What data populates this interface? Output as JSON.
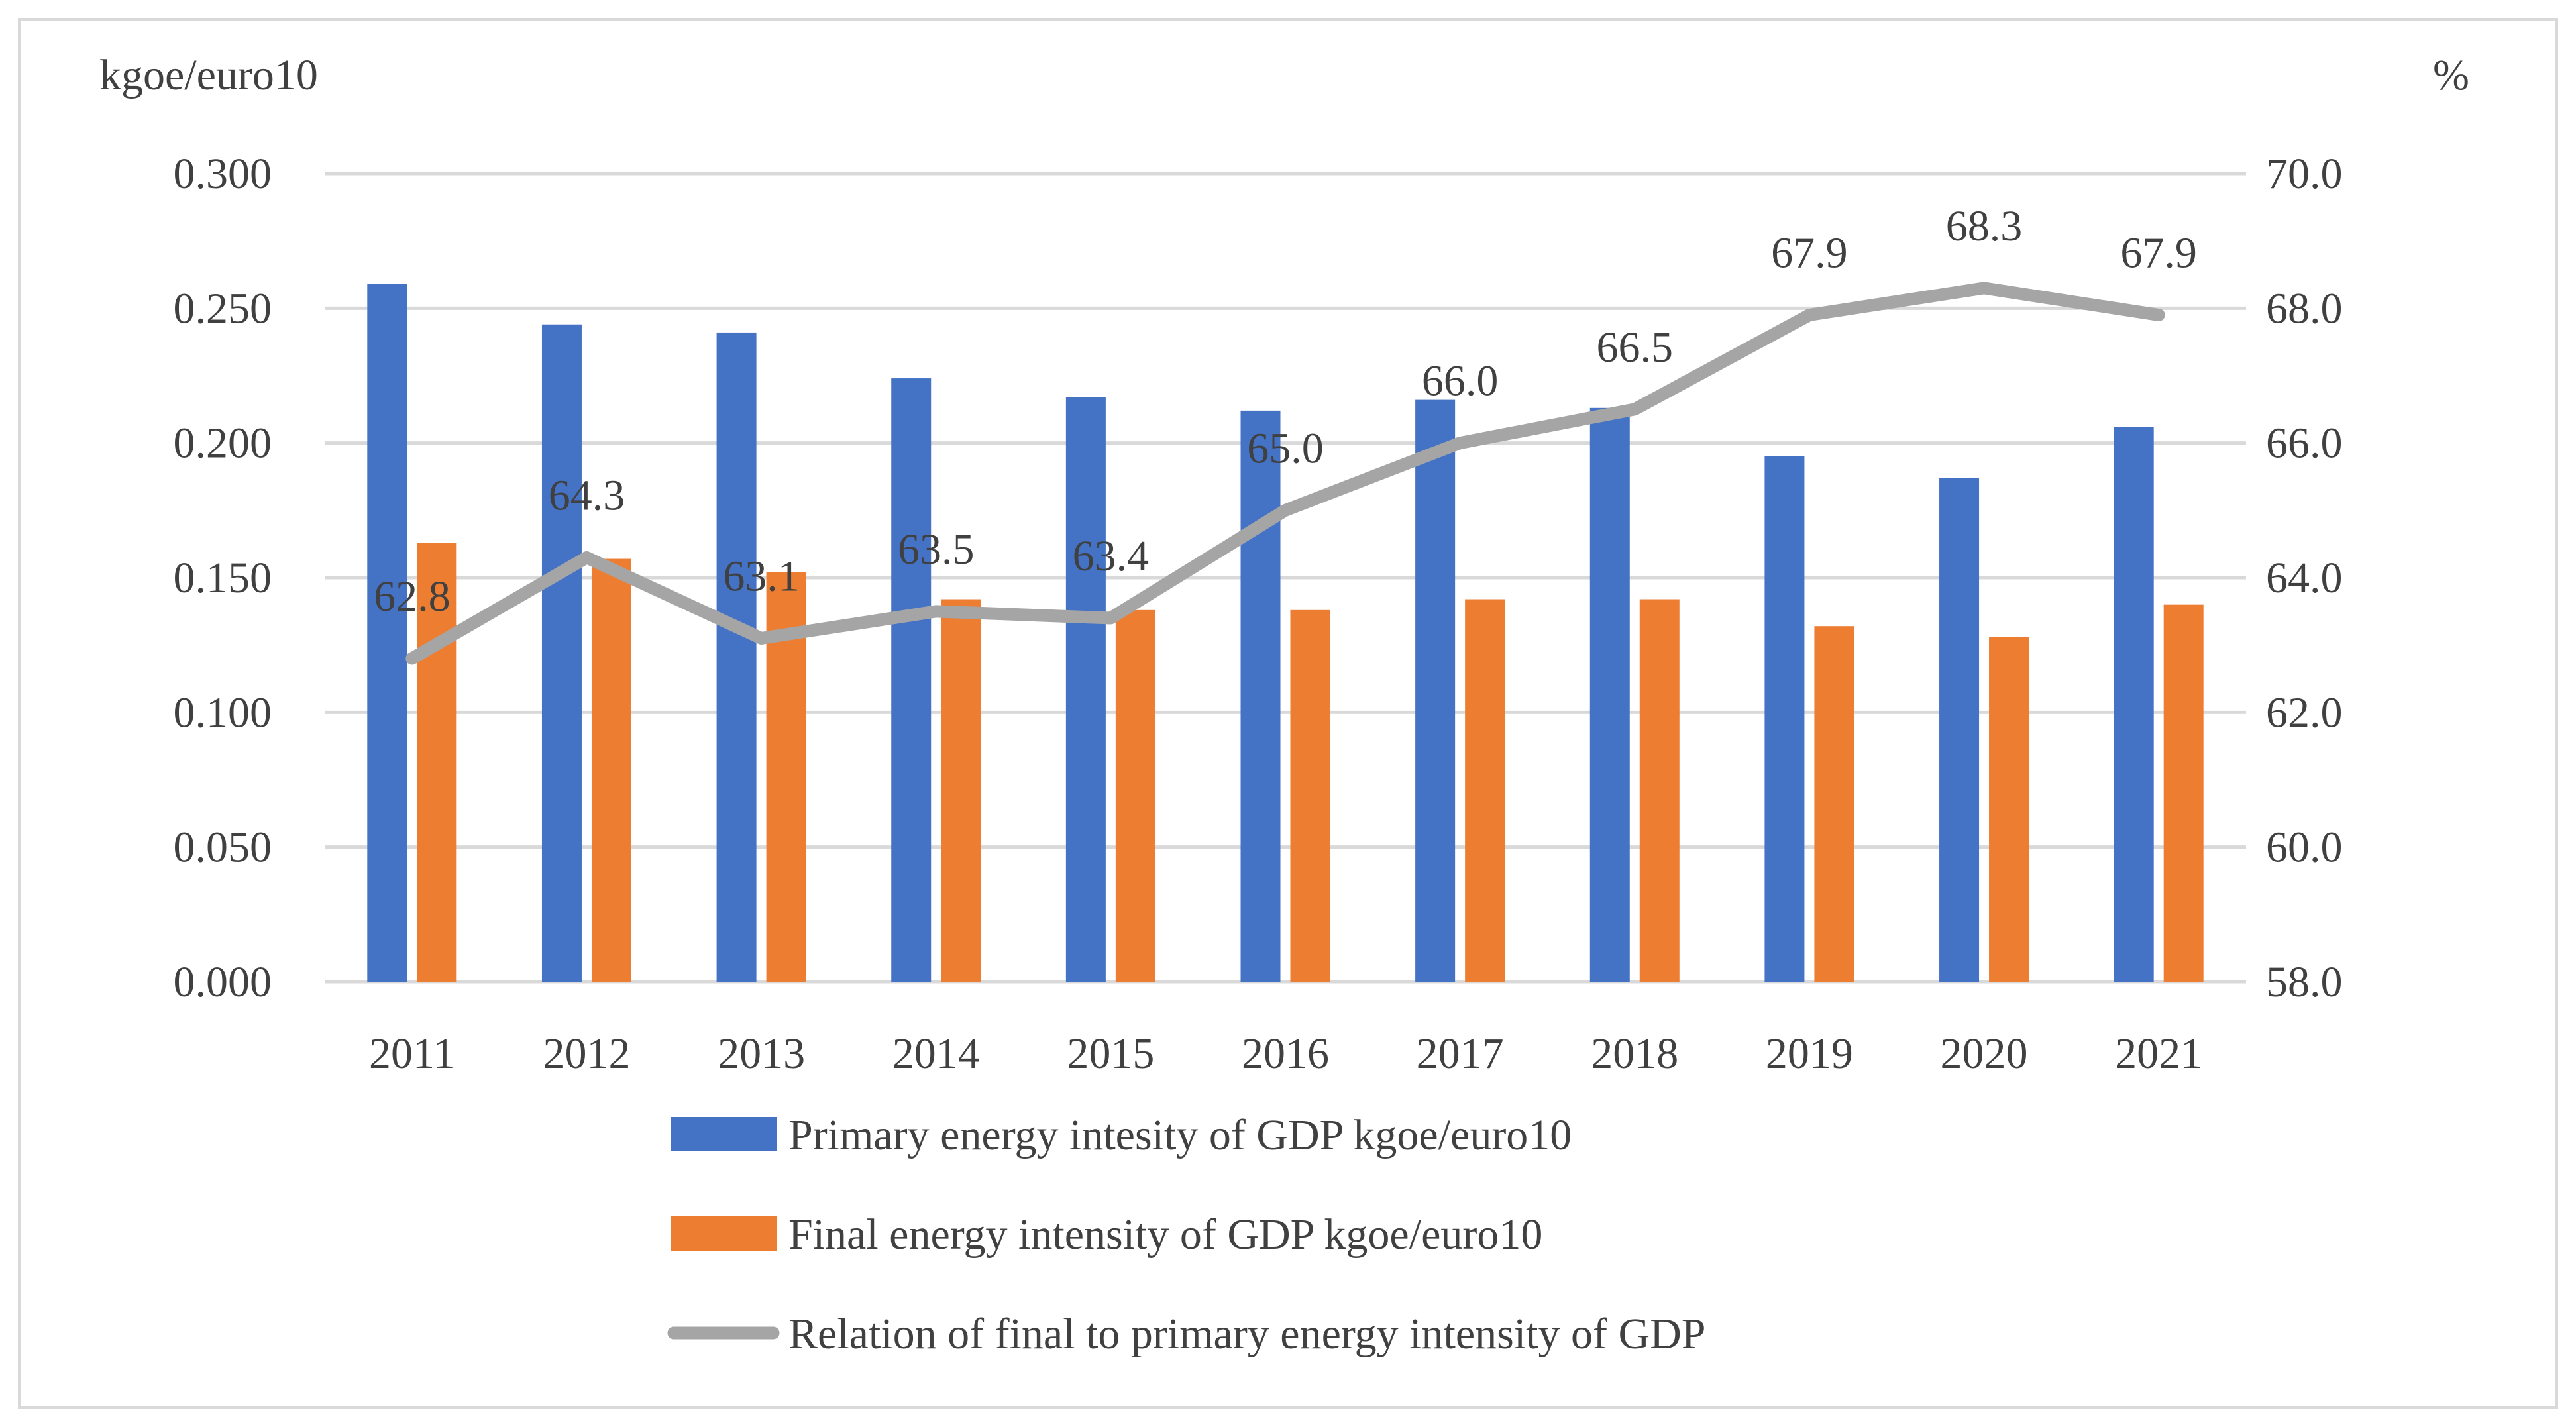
{
  "chart_data": {
    "type": "bar+line",
    "categories": [
      "2011",
      "2012",
      "2013",
      "2014",
      "2015",
      "2016",
      "2017",
      "2018",
      "2019",
      "2020",
      "2021"
    ],
    "series": [
      {
        "name": "Primary energy intesity of GDP kgoe/euro10",
        "kind": "bar",
        "axis": "left",
        "color": "#4472C4",
        "values": [
          0.259,
          0.244,
          0.241,
          0.224,
          0.217,
          0.212,
          0.216,
          0.213,
          0.195,
          0.187,
          0.206
        ]
      },
      {
        "name": "Final energy intensity of GDP kgoe/euro10",
        "kind": "bar",
        "axis": "left",
        "color": "#ED7D31",
        "values": [
          0.163,
          0.157,
          0.152,
          0.142,
          0.138,
          0.138,
          0.142,
          0.142,
          0.132,
          0.128,
          0.14
        ]
      },
      {
        "name": "Relation of final to primary energy intensity of GDP",
        "kind": "line",
        "axis": "right",
        "color": "#A5A5A5",
        "values": [
          62.8,
          64.3,
          63.1,
          63.5,
          63.4,
          65.0,
          66.0,
          66.5,
          67.9,
          68.3,
          67.9
        ],
        "data_labels": [
          "62.8",
          "64.3",
          "63.1",
          "63.5",
          "63.4",
          "65.0",
          "66.0",
          "66.5",
          "67.9",
          "68.3",
          "67.9"
        ]
      }
    ],
    "y_left": {
      "label": "kgoe/euro10",
      "min": 0,
      "max": 0.3,
      "ticks": [
        0,
        0.05,
        0.1,
        0.15,
        0.2,
        0.25,
        0.3
      ],
      "tick_labels": [
        "0.000",
        "0.050",
        "0.100",
        "0.150",
        "0.200",
        "0.250",
        "0.300"
      ]
    },
    "y_right": {
      "label": "%",
      "min": 58,
      "max": 70,
      "ticks": [
        58,
        60,
        62,
        64,
        66,
        68,
        70
      ],
      "tick_labels": [
        "58.0",
        "60.0",
        "62.0",
        "64.0",
        "66.0",
        "68.0",
        "70.0"
      ]
    },
    "grid": true,
    "legend_position": "bottom"
  }
}
